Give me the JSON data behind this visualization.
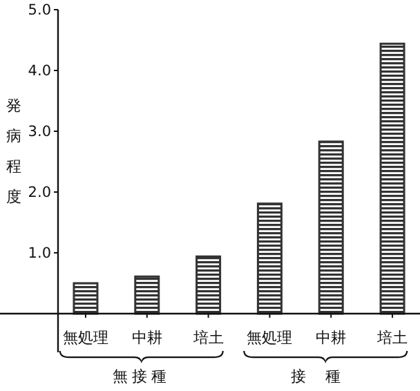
{
  "chart_data": {
    "type": "bar",
    "ylabel": "発病程度",
    "categories": [
      "無処理",
      "中耕",
      "培土",
      "無処理",
      "中耕",
      "培土"
    ],
    "values": [
      0.5,
      0.61,
      0.94,
      1.81,
      2.83,
      4.44
    ],
    "color": "#333333",
    "ylim": [
      0,
      5
    ],
    "yticks": [
      {
        "value": 1,
        "label": "1.0"
      },
      {
        "value": 2,
        "label": "2.0"
      },
      {
        "value": 3,
        "label": "3.0"
      },
      {
        "value": 4,
        "label": "4.0"
      },
      {
        "value": 5,
        "label": "5.0"
      }
    ],
    "annotations": [
      "無接種",
      "接種"
    ]
  }
}
